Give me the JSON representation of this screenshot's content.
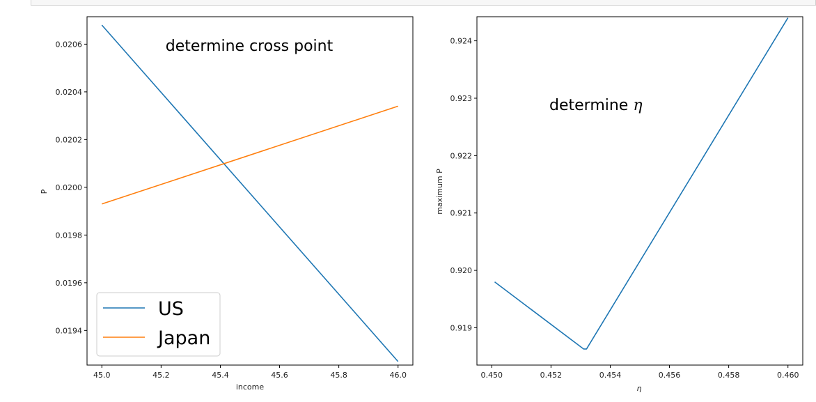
{
  "chart_data": [
    {
      "type": "line",
      "title": "",
      "annotation": "determine cross point",
      "xlabel": "income",
      "ylabel": "P",
      "xlim": [
        44.95,
        46.05
      ],
      "ylim": [
        0.019255,
        0.020715
      ],
      "xticks": [
        45.0,
        45.2,
        45.4,
        45.6,
        45.8,
        46.0
      ],
      "xtick_labels": [
        "45.0",
        "45.2",
        "45.4",
        "45.6",
        "45.8",
        "46.0"
      ],
      "yticks": [
        0.0194,
        0.0196,
        0.0198,
        0.02,
        0.0202,
        0.0204,
        0.0206
      ],
      "ytick_labels": [
        "0.0194",
        "0.0196",
        "0.0198",
        "0.0200",
        "0.0202",
        "0.0204",
        "0.0206"
      ],
      "grid": false,
      "legend_position": "lower-left",
      "series": [
        {
          "name": "US",
          "color": "#1f77b4",
          "x": [
            45.0,
            46.0
          ],
          "y": [
            0.02068,
            0.01927
          ]
        },
        {
          "name": "Japan",
          "color": "#ff7f0e",
          "x": [
            45.0,
            46.0
          ],
          "y": [
            0.01993,
            0.02034
          ]
        }
      ]
    },
    {
      "type": "line",
      "title": "",
      "annotation_prefix": "determine ",
      "annotation_symbol": "η",
      "xlabel": "η",
      "ylabel": "maximum P",
      "xlim": [
        0.4495,
        0.4605
      ],
      "ylim": [
        0.91835,
        0.92442
      ],
      "xticks": [
        0.45,
        0.452,
        0.454,
        0.456,
        0.458,
        0.46
      ],
      "xtick_labels": [
        "0.450",
        "0.452",
        "0.454",
        "0.456",
        "0.458",
        "0.460"
      ],
      "yticks": [
        0.919,
        0.92,
        0.921,
        0.922,
        0.923,
        0.924
      ],
      "ytick_labels": [
        "0.919",
        "0.920",
        "0.921",
        "0.922",
        "0.923",
        "0.924"
      ],
      "grid": false,
      "series": [
        {
          "color": "#1f77b4",
          "x": [
            0.4501,
            0.4531,
            0.4532,
            0.46
          ],
          "y": [
            0.9198,
            0.91863,
            0.91863,
            0.9244
          ]
        }
      ]
    }
  ]
}
